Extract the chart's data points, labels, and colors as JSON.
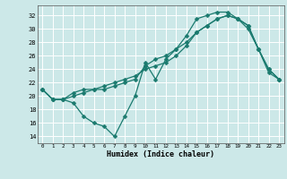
{
  "xlabel": "Humidex (Indice chaleur)",
  "background_color": "#cce8e8",
  "grid_color": "#ffffff",
  "line_color": "#1a7a6e",
  "xlim": [
    -0.5,
    23.5
  ],
  "ylim": [
    13.0,
    33.5
  ],
  "yticks": [
    14,
    16,
    18,
    20,
    22,
    24,
    26,
    28,
    30,
    32
  ],
  "xticks": [
    0,
    1,
    2,
    3,
    4,
    5,
    6,
    7,
    8,
    9,
    10,
    11,
    12,
    13,
    14,
    15,
    16,
    17,
    18,
    19,
    20,
    21,
    22,
    23
  ],
  "series1_x": [
    0,
    1,
    2,
    3,
    4,
    5,
    6,
    7,
    8,
    9,
    10,
    11,
    12,
    13,
    14,
    15,
    16,
    17,
    18,
    19,
    20,
    21,
    22,
    23
  ],
  "series1_y": [
    21.0,
    19.5,
    19.5,
    19.0,
    17.0,
    16.0,
    15.5,
    14.0,
    17.0,
    20.0,
    25.0,
    22.5,
    25.5,
    27.0,
    29.0,
    31.5,
    32.0,
    32.5,
    32.5,
    31.5,
    30.5,
    27.0,
    24.0,
    22.5
  ],
  "series2_x": [
    0,
    1,
    2,
    3,
    4,
    5,
    6,
    7,
    8,
    9,
    10,
    11,
    12,
    13,
    14,
    15,
    16,
    17,
    18,
    19,
    20,
    21,
    22,
    23
  ],
  "series2_y": [
    21.0,
    19.5,
    19.5,
    20.0,
    20.5,
    21.0,
    21.0,
    21.5,
    22.0,
    22.5,
    24.5,
    25.5,
    26.0,
    27.0,
    28.0,
    29.5,
    30.5,
    31.5,
    32.0,
    31.5,
    30.5,
    27.0,
    24.0,
    22.5
  ],
  "series3_x": [
    0,
    1,
    2,
    3,
    4,
    5,
    6,
    7,
    8,
    9,
    10,
    11,
    12,
    13,
    14,
    15,
    16,
    17,
    18,
    19,
    20,
    21,
    22,
    23
  ],
  "series3_y": [
    21.0,
    19.5,
    19.5,
    20.5,
    21.0,
    21.0,
    21.5,
    22.0,
    22.5,
    23.0,
    24.0,
    24.5,
    25.0,
    26.0,
    27.5,
    29.5,
    30.5,
    31.5,
    32.0,
    31.5,
    30.0,
    27.0,
    23.5,
    22.5
  ]
}
